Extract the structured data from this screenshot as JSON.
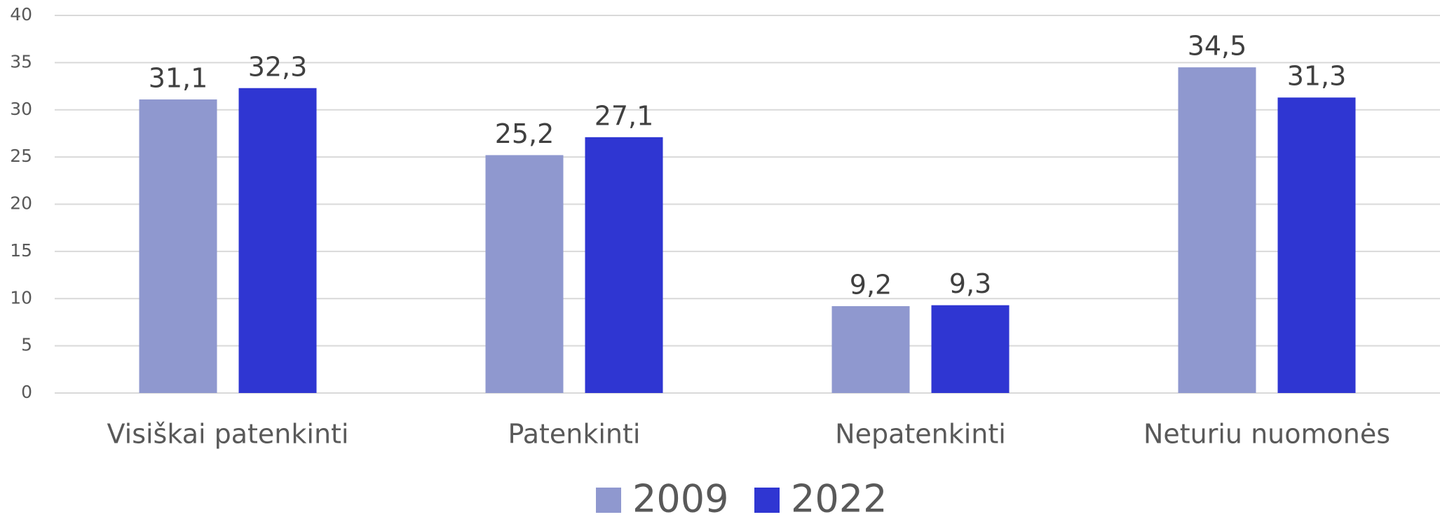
{
  "chart_data": {
    "type": "bar",
    "categories": [
      "Visiškai patenkinti",
      "Patenkinti",
      "Nepatenkinti",
      "Neturiu nuomonės"
    ],
    "series": [
      {
        "name": "2009",
        "color": "#8f98cf",
        "values": [
          31.1,
          25.2,
          9.2,
          34.5
        ],
        "value_labels": [
          "31,1",
          "25,2",
          "9,2",
          "34,5"
        ]
      },
      {
        "name": "2022",
        "color": "#2f36d2",
        "values": [
          32.3,
          27.1,
          9.3,
          31.3
        ],
        "value_labels": [
          "32,3",
          "27,1",
          "9,3",
          "31,3"
        ]
      }
    ],
    "ylim": [
      0,
      40
    ],
    "yticks": [
      0,
      5,
      10,
      15,
      20,
      25,
      30,
      35,
      40
    ],
    "grid": true,
    "legend": "bottom"
  }
}
